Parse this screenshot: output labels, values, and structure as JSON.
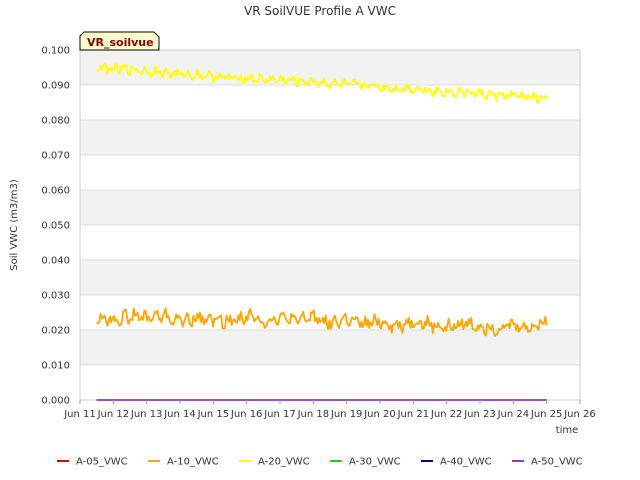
{
  "chart_data": {
    "type": "line",
    "title": "VR SoilVUE Profile A VWC",
    "xlabel": "time",
    "ylabel": "Soil VWC (m3/m3)",
    "badge": "VR_soilvue",
    "ylim": [
      0.0,
      0.1
    ],
    "xlim": [
      "Jun 11",
      "Jun 26"
    ],
    "x_ticks": [
      "Jun 11",
      "Jun 12",
      "Jun 13",
      "Jun 14",
      "Jun 15",
      "Jun 16",
      "Jun 17",
      "Jun 18",
      "Jun 19",
      "Jun 20",
      "Jun 21",
      "Jun 22",
      "Jun 23",
      "Jun 24",
      "Jun 25",
      "Jun 26"
    ],
    "y_ticks": [
      "0.000",
      "0.010",
      "0.020",
      "0.030",
      "0.040",
      "0.050",
      "0.060",
      "0.070",
      "0.080",
      "0.090",
      "0.100"
    ],
    "grid": true,
    "legend_position": "bottom",
    "x_days": [
      11.5,
      12.0,
      12.5,
      13.0,
      13.5,
      14.0,
      14.5,
      15.0,
      15.5,
      16.0,
      16.5,
      17.0,
      17.5,
      18.0,
      18.5,
      19.0,
      19.5,
      20.0,
      20.5,
      21.0,
      21.5,
      22.0,
      22.5,
      23.0,
      23.5,
      24.0,
      24.5,
      25.0
    ],
    "series": [
      {
        "name": "A-05_VWC",
        "color": "#dd0000",
        "values": [
          0,
          0,
          0,
          0,
          0,
          0,
          0,
          0,
          0,
          0,
          0,
          0,
          0,
          0,
          0,
          0,
          0,
          0,
          0,
          0,
          0,
          0,
          0,
          0,
          0,
          0,
          0,
          0
        ]
      },
      {
        "name": "A-10_VWC",
        "color": "#ffa500",
        "values": [
          0.0235,
          0.023,
          0.024,
          0.0235,
          0.024,
          0.0225,
          0.0235,
          0.023,
          0.0225,
          0.024,
          0.0225,
          0.0235,
          0.0225,
          0.024,
          0.022,
          0.023,
          0.0215,
          0.0225,
          0.021,
          0.0225,
          0.0215,
          0.0205,
          0.022,
          0.021,
          0.0205,
          0.0215,
          0.0205,
          0.0225
        ]
      },
      {
        "name": "A-20_VWC",
        "color": "#ffff00",
        "values": [
          0.095,
          0.0945,
          0.0945,
          0.094,
          0.0935,
          0.093,
          0.093,
          0.0925,
          0.092,
          0.092,
          0.0915,
          0.0915,
          0.091,
          0.091,
          0.0905,
          0.09,
          0.09,
          0.0895,
          0.089,
          0.089,
          0.0885,
          0.088,
          0.088,
          0.0875,
          0.087,
          0.087,
          0.0865,
          0.086
        ]
      },
      {
        "name": "A-30_VWC",
        "color": "#22cc22",
        "values": [
          0,
          0,
          0,
          0,
          0,
          0,
          0,
          0,
          0,
          0,
          0,
          0,
          0,
          0,
          0,
          0,
          0,
          0,
          0,
          0,
          0,
          0,
          0,
          0,
          0,
          0,
          0,
          0
        ]
      },
      {
        "name": "A-40_VWC",
        "color": "#0000aa",
        "values": [
          0,
          0,
          0,
          0,
          0,
          0,
          0,
          0,
          0,
          0,
          0,
          0,
          0,
          0,
          0,
          0,
          0,
          0,
          0,
          0,
          0,
          0,
          0,
          0,
          0,
          0,
          0,
          0
        ]
      },
      {
        "name": "A-50_VWC",
        "color": "#9932cc",
        "values": [
          0,
          0,
          0,
          0,
          0,
          0,
          0,
          0,
          0,
          0,
          0,
          0,
          0,
          0,
          0,
          0,
          0,
          0,
          0,
          0,
          0,
          0,
          0,
          0,
          0,
          0,
          0,
          0
        ]
      }
    ]
  }
}
